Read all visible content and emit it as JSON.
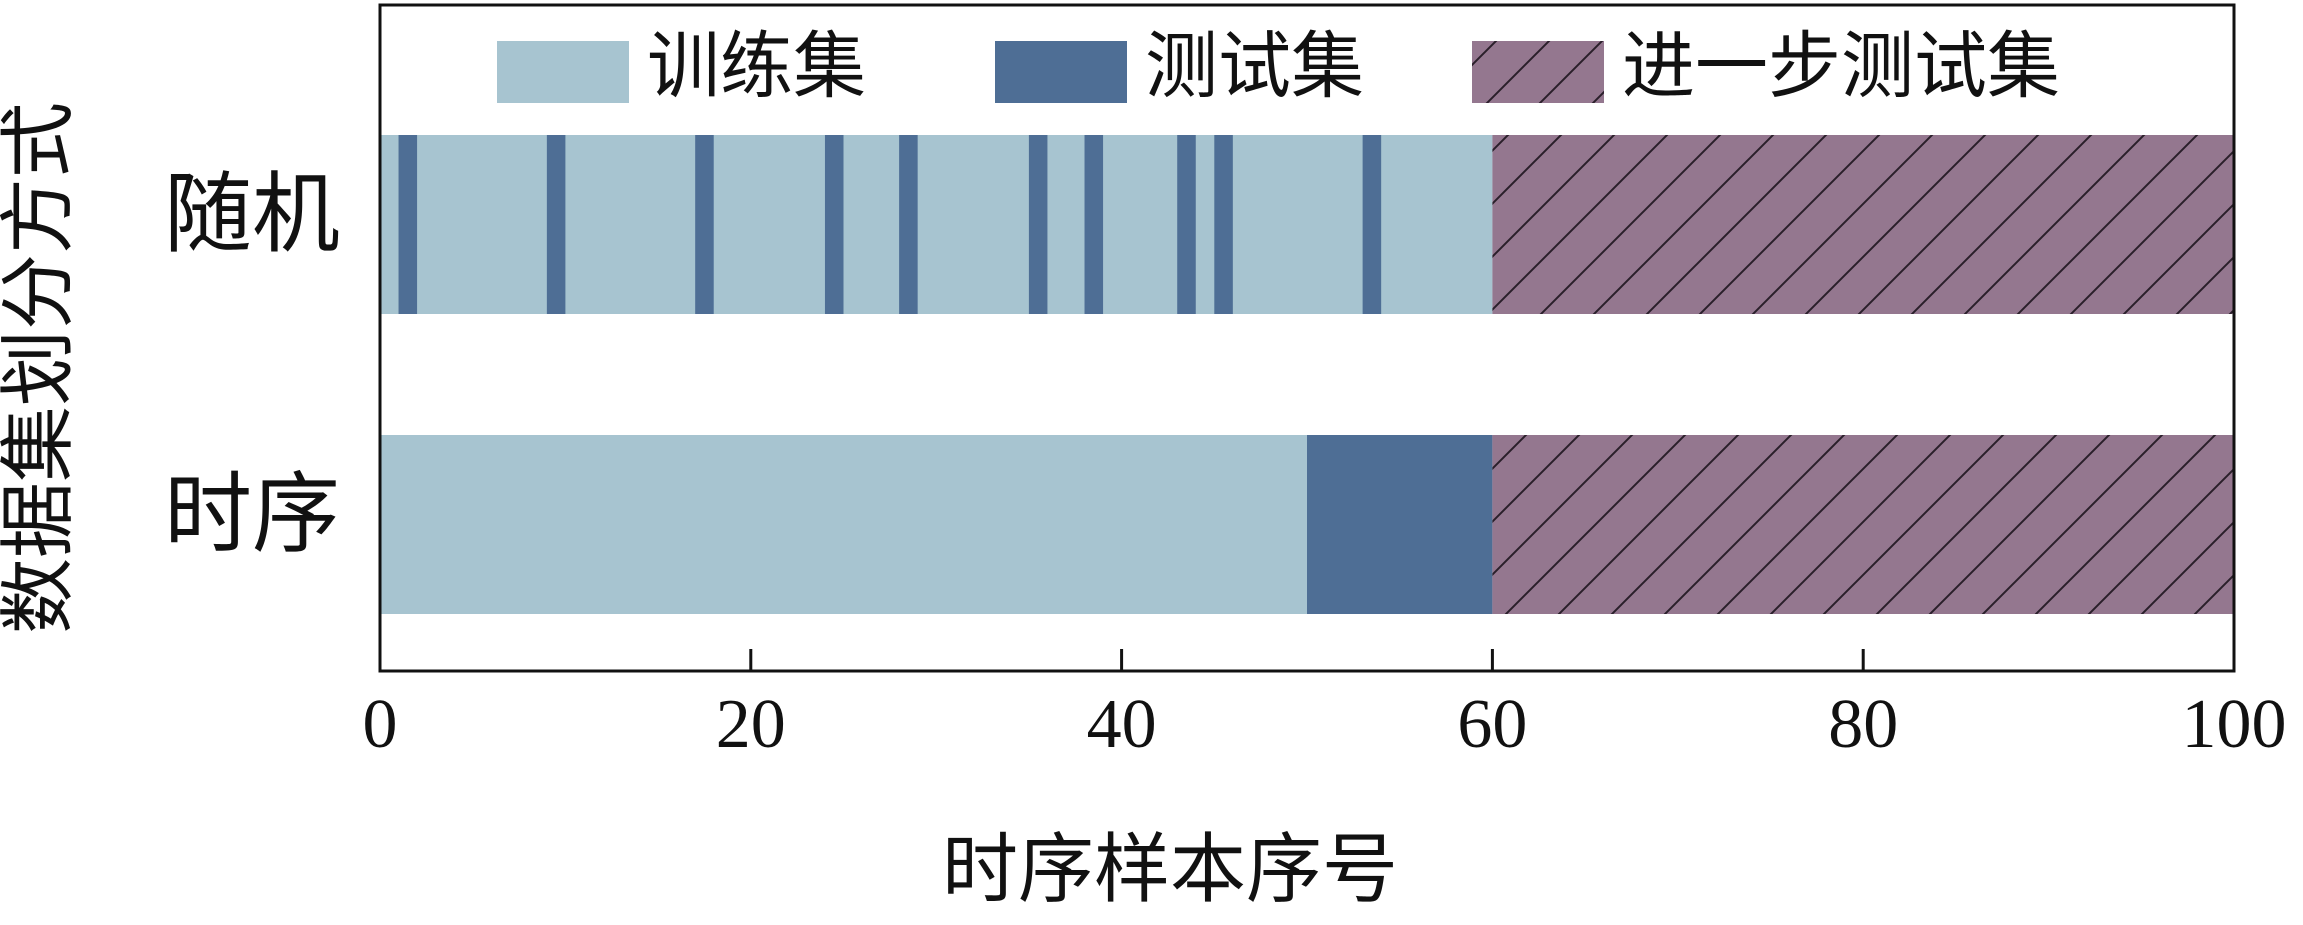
{
  "chart_data": {
    "type": "timeline",
    "xlabel": "时序样本序号",
    "ylabel": "数据集划分方式",
    "categories": [
      "随机",
      "时序"
    ],
    "xlim": [
      0,
      100
    ],
    "xticks": [
      0,
      20,
      40,
      60,
      80,
      100
    ],
    "series": [
      {
        "name": "训练集",
        "color": "#a7c4d0",
        "hatch": false,
        "ranges": [
          [
            [
              0,
              60
            ]
          ],
          [
            [
              0,
              50
            ]
          ]
        ]
      },
      {
        "name": "测试集",
        "color": "#4e6e95",
        "hatch": false,
        "ranges": [
          [
            [
              1,
              2
            ],
            [
              9,
              10
            ],
            [
              17,
              18
            ],
            [
              24,
              25
            ],
            [
              28,
              29
            ],
            [
              35,
              36
            ],
            [
              38,
              39
            ],
            [
              43,
              44
            ],
            [
              45,
              46
            ],
            [
              53,
              54
            ]
          ],
          [
            [
              50,
              60
            ]
          ]
        ]
      },
      {
        "name": "进一步测试集",
        "color": "#94778f",
        "hatch": true,
        "ranges": [
          [
            [
              60,
              100
            ]
          ],
          [
            [
              60,
              100
            ]
          ]
        ]
      }
    ]
  }
}
